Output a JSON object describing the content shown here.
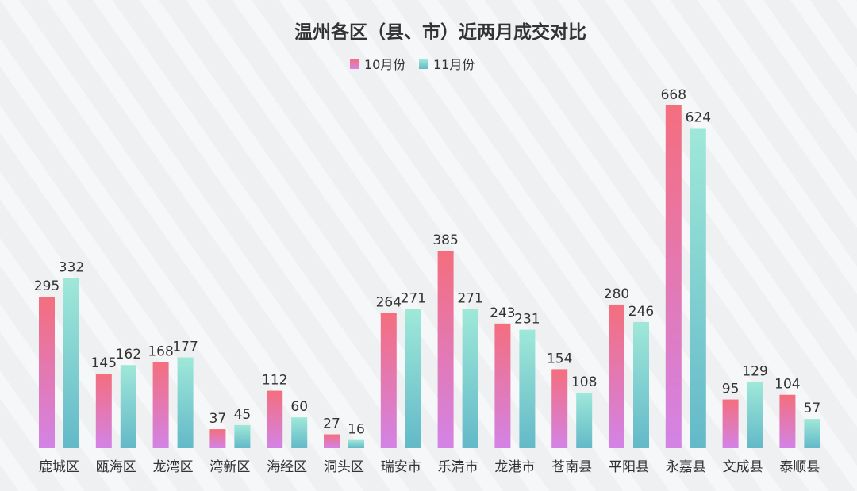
{
  "chart_data": {
    "type": "bar",
    "title": "温州各区（县、市）近两月成交对比",
    "xlabel": "",
    "ylabel": "",
    "ylim": [
      0,
      700
    ],
    "grid": false,
    "legend": "top-center",
    "categories": [
      "鹿城区",
      "瓯海区",
      "龙湾区",
      "湾新区",
      "海经区",
      "洞头区",
      "瑞安市",
      "乐清市",
      "龙港市",
      "苍南县",
      "平阳县",
      "永嘉县",
      "文成县",
      "泰顺县"
    ],
    "series": [
      {
        "name": "10月份",
        "values": [
          295,
          145,
          168,
          37,
          112,
          27,
          264,
          385,
          243,
          154,
          280,
          668,
          95,
          104
        ]
      },
      {
        "name": "11月份",
        "values": [
          332,
          162,
          177,
          45,
          60,
          16,
          271,
          271,
          231,
          108,
          246,
          624,
          129,
          57
        ]
      }
    ]
  },
  "colors": {
    "series1_top": "#f46e7e",
    "series1_bottom": "#d383e6",
    "series2_top": "#9fe8d9",
    "series2_bottom": "#63b9c8",
    "text": "#333333",
    "background": "#eef0f2"
  }
}
